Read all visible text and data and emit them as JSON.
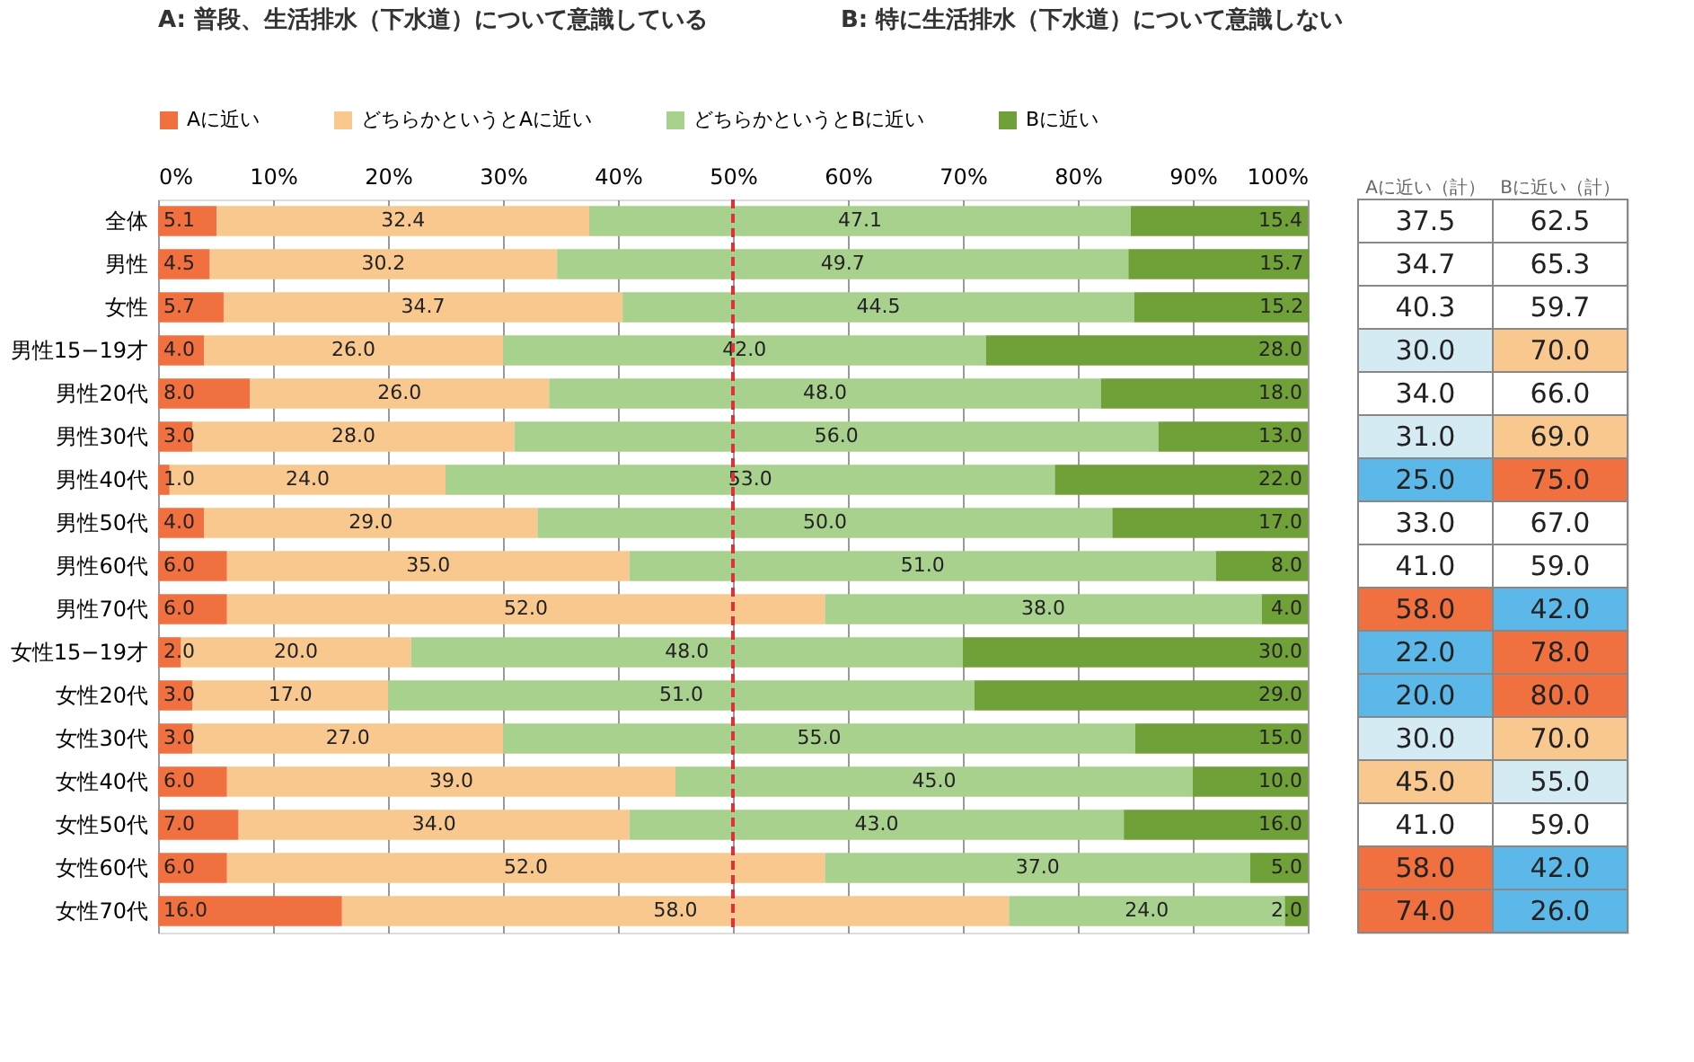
{
  "chart_data": [
    {
      "type": "bar",
      "orientation": "horizontal",
      "stacked": true,
      "grid": "x",
      "legend": "top",
      "annotations": [
        "A: 普段、生活排水（下水道）について意識している",
        "B: 特に生活排水（下水道）について意識しない"
      ],
      "categories": [
        "全体",
        "男性",
        "女性",
        "男性15−19才",
        "男性20代",
        "男性30代",
        "男性40代",
        "男性50代",
        "男性60代",
        "男性70代",
        "女性15−19才",
        "女性20代",
        "女性30代",
        "女性40代",
        "女性50代",
        "女性60代",
        "女性70代"
      ],
      "xlim": [
        0,
        100
      ],
      "xticks": [
        {
          "value": 0,
          "label": "0%"
        },
        {
          "value": 10,
          "label": "10%"
        },
        {
          "value": 20,
          "label": "20%"
        },
        {
          "value": 30,
          "label": "30%"
        },
        {
          "value": 40,
          "label": "40%"
        },
        {
          "value": 50,
          "label": "50%"
        },
        {
          "value": 60,
          "label": "60%"
        },
        {
          "value": 70,
          "label": "70%"
        },
        {
          "value": 80,
          "label": "80%"
        },
        {
          "value": 90,
          "label": "90%"
        },
        {
          "value": 100,
          "label": "100%"
        }
      ],
      "ref_lines": [
        {
          "axis": "x",
          "value": 50,
          "color": "#e0303a",
          "line_style": "dashed"
        }
      ],
      "series": [
        {
          "name": "Aに近い",
          "color": "#f07040",
          "values": [
            5.1,
            4.5,
            5.7,
            4,
            8,
            3,
            1,
            4,
            6,
            6,
            2,
            3,
            3,
            6,
            7,
            6,
            16
          ],
          "value_labels": [
            "5.1",
            "4.5",
            "5.7",
            "4.0",
            "8.0",
            "3.0",
            "1.0",
            "4.0",
            "6.0",
            "6.0",
            "2.0",
            "3.0",
            "3.0",
            "6.0",
            "7.0",
            "6.0",
            "16.0"
          ]
        },
        {
          "name": "どちらかというとAに近い",
          "color": "#f9c88f",
          "values": [
            32.4,
            30.2,
            34.7,
            26,
            26,
            28,
            24,
            29,
            35,
            52,
            20,
            17,
            27,
            39,
            34,
            52,
            58
          ],
          "value_labels": [
            "32.4",
            "30.2",
            "34.7",
            "26.0",
            "26.0",
            "28.0",
            "24.0",
            "29.0",
            "35.0",
            "52.0",
            "20.0",
            "17.0",
            "27.0",
            "39.0",
            "34.0",
            "52.0",
            "58.0"
          ]
        },
        {
          "name": "どちらかというとBに近い",
          "color": "#a9d18e",
          "values": [
            47.1,
            49.7,
            44.5,
            42,
            48,
            56,
            53,
            50,
            51,
            38,
            48,
            51,
            55,
            45,
            43,
            37,
            24
          ],
          "value_labels": [
            "47.1",
            "49.7",
            "44.5",
            "42.0",
            "48.0",
            "56.0",
            "53.0",
            "50.0",
            "51.0",
            "38.0",
            "48.0",
            "51.0",
            "55.0",
            "45.0",
            "43.0",
            "37.0",
            "24.0"
          ]
        },
        {
          "name": "Bに近い",
          "color": "#70a138",
          "values": [
            15.4,
            15.7,
            15.2,
            28,
            18,
            13,
            22,
            17,
            8,
            4,
            30,
            29,
            15,
            10,
            16,
            5,
            2
          ],
          "value_labels": [
            "15.4",
            "15.7",
            "15.2",
            "28.0",
            "18.0",
            "13.0",
            "22.0",
            "17.0",
            "8.0",
            "4.0",
            "30.0",
            "29.0",
            "15.0",
            "10.0",
            "16.0",
            "5.0",
            "2.0"
          ]
        }
      ]
    },
    {
      "type": "heatmap",
      "categories": [
        "Aに近い（計）",
        "Bに近い（計）"
      ],
      "y_categories": [
        null,
        null,
        null,
        null,
        null,
        null,
        null,
        null,
        null,
        null,
        null,
        null,
        null,
        null,
        null,
        null,
        null
      ],
      "cell_labels": [
        [
          "37.5",
          "62.5"
        ],
        [
          "34.7",
          "65.3"
        ],
        [
          "40.3",
          "59.7"
        ],
        [
          "30.0",
          "70.0"
        ],
        [
          "34.0",
          "66.0"
        ],
        [
          "31.0",
          "69.0"
        ],
        [
          "25.0",
          "75.0"
        ],
        [
          "33.0",
          "67.0"
        ],
        [
          "41.0",
          "59.0"
        ],
        [
          "58.0",
          "42.0"
        ],
        [
          "22.0",
          "78.0"
        ],
        [
          "20.0",
          "80.0"
        ],
        [
          "30.0",
          "70.0"
        ],
        [
          "45.0",
          "55.0"
        ],
        [
          "41.0",
          "59.0"
        ],
        [
          "58.0",
          "42.0"
        ],
        [
          "74.0",
          "26.0"
        ]
      ],
      "cells": [
        [
          37.5,
          62.5
        ],
        [
          34.7,
          65.3
        ],
        [
          40.3,
          59.7
        ],
        [
          30.0,
          70.0
        ],
        [
          34.0,
          66.0
        ],
        [
          31.0,
          69.0
        ],
        [
          25.0,
          75.0
        ],
        [
          33.0,
          67.0
        ],
        [
          41.0,
          59.0
        ],
        [
          58.0,
          42.0
        ],
        [
          22.0,
          78.0
        ],
        [
          20.0,
          80.0
        ],
        [
          30.0,
          70.0
        ],
        [
          45.0,
          55.0
        ],
        [
          41.0,
          59.0
        ],
        [
          58.0,
          42.0
        ],
        [
          74.0,
          26.0
        ]
      ]
    }
  ]
}
